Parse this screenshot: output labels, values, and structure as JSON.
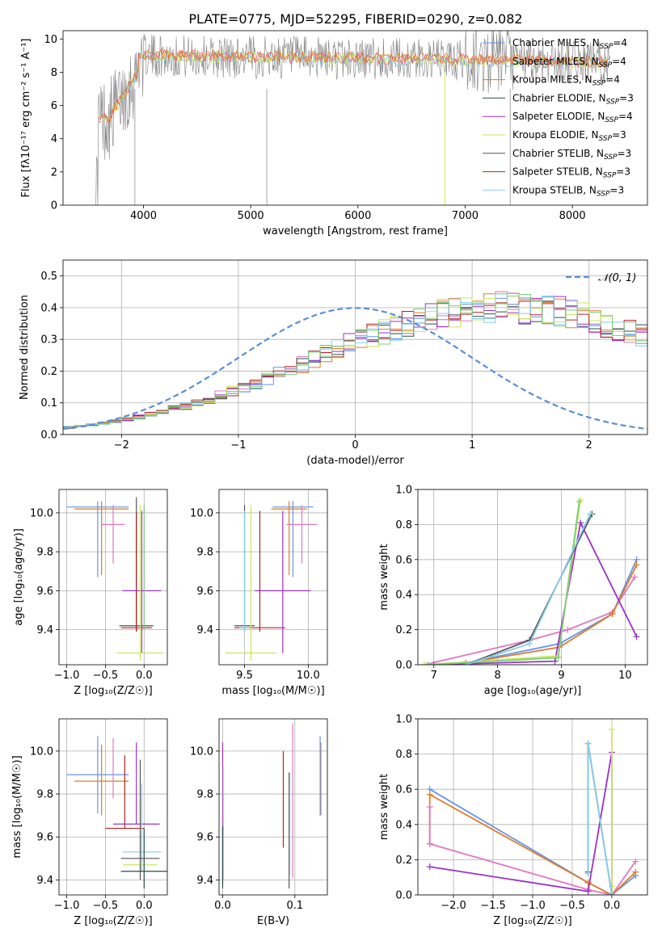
{
  "figure_title": "PLATE=0775, MJD=52295, FIBERID=0290, z=0.082",
  "colors": {
    "Chabrier MILES": "#6495ed",
    "Salpeter MILES": "#e8627a",
    "Kroupa MILES": "#e07b28",
    "Chabrier ELODIE": "#2f4f4f",
    "Salpeter ELODIE": "#9932cc",
    "Kroupa ELODIE": "#c9e85a",
    "Chabrier STELIB": "#555555",
    "Salpeter STELIB": "#b22222",
    "Kroupa STELIB": "#87ceeb",
    "pink": "#e377c2",
    "green": "#7ccd7c",
    "spectrum_gray": "#808080",
    "normal_curve": "#5b8fd6"
  },
  "chart_data": [
    {
      "id": "spectrum",
      "type": "line",
      "title": "PLATE=0775, MJD=52295, FIBERID=0290, z=0.082",
      "xlabel": "wavelength [Angstrom, rest frame]",
      "ylabel": "Flux [fλ10⁻¹⁷ erg cm⁻² s⁻¹ A⁻¹]",
      "xlim": [
        3250,
        8700
      ],
      "ylim": [
        0,
        10.5
      ],
      "xticks": [
        4000,
        5000,
        6000,
        7000,
        8000
      ],
      "yticks": [
        0,
        2,
        4,
        6,
        8,
        10
      ],
      "legend": {
        "position": "top-right",
        "entries": [
          "Chabrier MILES, N_SSP=4",
          "Salpeter MILES, N_SSP=4",
          "Kroupa MILES, N_SSP=4",
          "Chabrier ELODIE, N_SSP=3",
          "Salpeter ELODIE, N_SSP=4",
          "Kroupa ELODIE, N_SSP=3",
          "Chabrier STELIB, N_SSP=3",
          "Salpeter STELIB, N_SSP=3",
          "Kroupa STELIB, N_SSP=3"
        ]
      },
      "data_wavelength_range": [
        3550,
        8350
      ]
    },
    {
      "id": "residuals",
      "type": "histogram",
      "xlabel": "(data-model)/error",
      "ylabel": "Normed distribution",
      "xlim": [
        -2.5,
        2.5
      ],
      "ylim": [
        0,
        0.55
      ],
      "xticks": [
        -2,
        -1,
        0,
        1,
        2
      ],
      "yticks": [
        0.0,
        0.1,
        0.2,
        0.3,
        0.4,
        0.5
      ],
      "grid": true,
      "bin_width": 0.1,
      "bin_start": -2.5,
      "reference_values": [
        0.022,
        0.026,
        0.031,
        0.036,
        0.042,
        0.049,
        0.056,
        0.063,
        0.072,
        0.081,
        0.09,
        0.101,
        0.112,
        0.124,
        0.137,
        0.15,
        0.163,
        0.178,
        0.192,
        0.207,
        0.222,
        0.237,
        0.253,
        0.268,
        0.283,
        0.297,
        0.312,
        0.325,
        0.338,
        0.35,
        0.361,
        0.371,
        0.38,
        0.387,
        0.393,
        0.397,
        0.4,
        0.401,
        0.4,
        0.398,
        0.397,
        0.393,
        0.387,
        0.38,
        0.371,
        0.361,
        0.35,
        0.338,
        0.325,
        0.312,
        0.297
      ],
      "normal_curve_legend": "𝒩(0, 1)",
      "normal_curve_legend_position": "top-right"
    },
    {
      "id": "age_vs_Z",
      "type": "errorbar",
      "xlabel": "Z [log₁₀(Z/Z☉)]",
      "ylabel": "age  [log₁₀(age/yr)]",
      "xlim": [
        -1.1,
        0.3
      ],
      "ylim": [
        9.22,
        10.12
      ],
      "xticks": [
        -1.0,
        -0.5,
        0.0
      ],
      "yticks": [
        9.4,
        9.6,
        9.8,
        10.0
      ],
      "grid": true,
      "points": [
        {
          "color": "Chabrier MILES",
          "x": -0.6,
          "y": 10.03,
          "xerr": 0.4,
          "yerr": [
            0.36,
            0.03
          ]
        },
        {
          "color": "Kroupa MILES",
          "x": -0.55,
          "y": 10.02,
          "xerr": 0.35,
          "yerr": [
            0.34,
            0.04
          ]
        },
        {
          "color": "pink",
          "x": -0.4,
          "y": 9.94,
          "xerr": 0.15,
          "yerr": [
            0.2,
            0.1
          ]
        },
        {
          "color": "Chabrier STELIB",
          "x": -0.1,
          "y": 9.42,
          "xerr": 0.22,
          "yerr": [
            0.03,
            0.66
          ]
        },
        {
          "color": "Salpeter STELIB",
          "x": -0.1,
          "y": 9.41,
          "xerr": 0.2,
          "yerr": [
            0.02,
            0.59
          ]
        },
        {
          "color": "Salpeter ELODIE",
          "x": -0.03,
          "y": 9.6,
          "xerr": 0.25,
          "yerr": [
            0.32,
            0.41
          ]
        },
        {
          "color": "Kroupa ELODIE",
          "x": -0.05,
          "y": 9.28,
          "xerr": 0.3,
          "yerr": [
            0.04,
            0.76
          ]
        },
        {
          "color": "green",
          "x": 0.0,
          "y": 9.4,
          "xerr": 0.0,
          "yerr": [
            0.0,
            0.64
          ]
        }
      ]
    },
    {
      "id": "age_vs_mass",
      "type": "errorbar",
      "xlabel": "mass [log₁₀(M/M☉)]",
      "ylabel": "",
      "xlim": [
        9.3,
        10.15
      ],
      "ylim": [
        9.22,
        10.12
      ],
      "xticks": [
        9.5,
        10.0
      ],
      "yticks": [
        9.4,
        9.6,
        9.8,
        10.0
      ],
      "grid": true,
      "points": [
        {
          "color": "Chabrier MILES",
          "x": 9.88,
          "y": 10.03,
          "xerr": 0.16,
          "yerr": [
            0.36,
            0.03
          ]
        },
        {
          "color": "Kroupa MILES",
          "x": 9.85,
          "y": 10.02,
          "xerr": 0.14,
          "yerr": [
            0.34,
            0.04
          ]
        },
        {
          "color": "pink",
          "x": 9.95,
          "y": 9.94,
          "xerr": 0.12,
          "yerr": [
            0.2,
            0.1
          ]
        },
        {
          "color": "Chabrier STELIB",
          "x": 9.5,
          "y": 9.42,
          "xerr": 0.08,
          "yerr": [
            0.03,
            0.62
          ]
        },
        {
          "color": "Salpeter STELIB",
          "x": 9.62,
          "y": 9.41,
          "xerr": 0.2,
          "yerr": [
            0.02,
            0.6
          ]
        },
        {
          "color": "Salpeter ELODIE",
          "x": 9.8,
          "y": 9.6,
          "xerr": 0.22,
          "yerr": [
            0.32,
            0.41
          ]
        },
        {
          "color": "Kroupa ELODIE",
          "x": 9.55,
          "y": 9.28,
          "xerr": 0.2,
          "yerr": [
            0.04,
            0.76
          ]
        },
        {
          "color": "Kroupa STELIB",
          "x": 9.5,
          "y": 9.41,
          "xerr": 0.04,
          "yerr": [
            0.02,
            0.6
          ]
        }
      ]
    },
    {
      "id": "massweight_vs_age",
      "type": "line",
      "xlabel": "age  [log₁₀(age/yr)]",
      "ylabel": "mass weight",
      "xlim": [
        6.75,
        10.35
      ],
      "ylim": [
        0,
        1.0
      ],
      "xticks": [
        7,
        8,
        9,
        10
      ],
      "yticks": [
        0.0,
        0.2,
        0.4,
        0.6,
        0.8,
        1.0
      ],
      "grid": true,
      "series": [
        {
          "color": "Chabrier MILES",
          "x": [
            7.0,
            7.5,
            8.97,
            9.8,
            10.18
          ],
          "y": [
            0.0,
            0.01,
            0.12,
            0.29,
            0.6
          ]
        },
        {
          "color": "pink",
          "x": [
            6.85,
            8.5,
            9.1,
            9.8,
            10.15
          ],
          "y": [
            0.0,
            0.14,
            0.2,
            0.3,
            0.5
          ]
        },
        {
          "color": "Kroupa MILES",
          "x": [
            7.0,
            7.5,
            8.97,
            9.8,
            10.18
          ],
          "y": [
            0.0,
            0.01,
            0.1,
            0.29,
            0.57
          ]
        },
        {
          "color": "Salpeter ELODIE",
          "x": [
            7.0,
            8.9,
            9.3,
            10.18
          ],
          "y": [
            0.0,
            0.02,
            0.81,
            0.16
          ]
        },
        {
          "color": "Kroupa ELODIE",
          "x": [
            6.85,
            8.95,
            9.3
          ],
          "y": [
            0.0,
            0.05,
            0.94
          ]
        },
        {
          "color": "green",
          "x": [
            6.9,
            8.95,
            9.28
          ],
          "y": [
            0.0,
            0.04,
            0.93
          ]
        },
        {
          "color": "Chabrier STELIB",
          "x": [
            7.5,
            8.5,
            9.48
          ],
          "y": [
            0.0,
            0.14,
            0.86
          ]
        },
        {
          "color": "Kroupa STELIB",
          "x": [
            7.5,
            8.5,
            9.45
          ],
          "y": [
            0.0,
            0.12,
            0.86
          ]
        }
      ]
    },
    {
      "id": "mass_vs_Z",
      "type": "errorbar",
      "xlabel": "Z [log₁₀(Z/Z☉)]",
      "ylabel": "mass [log₁₀(M/M☉)]",
      "xlim": [
        -1.1,
        0.3
      ],
      "ylim": [
        9.33,
        10.15
      ],
      "xticks": [
        -1.0,
        -0.5,
        0.0
      ],
      "yticks": [
        9.4,
        9.6,
        9.8,
        10.0
      ],
      "grid": true,
      "points": [
        {
          "color": "Chabrier MILES",
          "x": -0.6,
          "y": 9.89,
          "xerr": 0.4,
          "yerr": [
            0.18,
            0.18
          ]
        },
        {
          "color": "Kroupa MILES",
          "x": -0.55,
          "y": 9.86,
          "xerr": 0.35,
          "yerr": [
            0.16,
            0.17
          ]
        },
        {
          "color": "pink",
          "x": -0.4,
          "y": 9.94,
          "xerr": 0.0,
          "yerr": [
            0.16,
            0.12
          ]
        },
        {
          "color": "Salpeter STELIB",
          "x": -0.25,
          "y": 9.64,
          "xerr": 0.25,
          "yerr": [
            0.0,
            0.34
          ]
        },
        {
          "color": "Salpeter ELODIE",
          "x": -0.1,
          "y": 9.66,
          "xerr": 0.3,
          "yerr": [
            0.0,
            0.38
          ]
        },
        {
          "color": "Kroupa STELIB",
          "x": -0.03,
          "y": 9.53,
          "xerr": 0.25,
          "yerr": [
            0.09,
            0.32
          ]
        },
        {
          "color": "Kroupa ELODIE",
          "x": -0.05,
          "y": 9.47,
          "xerr": 0.22,
          "yerr": [
            0.07,
            0.31
          ]
        },
        {
          "color": "Chabrier STELIB",
          "x": -0.05,
          "y": 9.5,
          "xerr": 0.25,
          "yerr": [
            0.1,
            0.46
          ]
        },
        {
          "color": "Chabrier ELODIE",
          "x": 0.0,
          "y": 9.44,
          "xerr": 0.3,
          "yerr": [
            0.08,
            0.2
          ]
        }
      ]
    },
    {
      "id": "mass_vs_ebv",
      "type": "errorbar",
      "xlabel": "E(B-V)",
      "ylabel": "",
      "xlim": [
        -0.005,
        0.145
      ],
      "ylim": [
        9.33,
        10.15
      ],
      "xticks": [
        0.0,
        0.1
      ],
      "yticks": [
        9.4,
        9.6,
        9.8,
        10.0
      ],
      "grid": true,
      "points": [
        {
          "color": "Salpeter ELODIE",
          "x": 0.0,
          "y": 9.73,
          "yerr": [
            0.35,
            0.31
          ]
        },
        {
          "color": "Kroupa ELODIE",
          "x": 0.001,
          "y": 9.6,
          "yerr": [
            0.2,
            0.33
          ]
        },
        {
          "color": "Chabrier ELODIE",
          "x": 0.0,
          "y": 9.45,
          "yerr": [
            0.09,
            0.2
          ]
        },
        {
          "color": "Salpeter STELIB",
          "x": 0.084,
          "y": 9.78,
          "yerr": [
            0.23,
            0.22
          ]
        },
        {
          "color": "Chabrier STELIB",
          "x": 0.092,
          "y": 9.65,
          "yerr": [
            0.29,
            0.25
          ]
        },
        {
          "color": "Kroupa STELIB",
          "x": 0.093,
          "y": 9.66,
          "yerr": [
            0.24,
            0.24
          ]
        },
        {
          "color": "pink",
          "x": 0.097,
          "y": 9.75,
          "yerr": [
            0.34,
            0.38
          ]
        },
        {
          "color": "Kroupa MILES",
          "x": 0.136,
          "y": 9.87,
          "yerr": [
            0.17,
            0.17
          ]
        },
        {
          "color": "Chabrier MILES",
          "x": 0.135,
          "y": 9.9,
          "yerr": [
            0.2,
            0.17
          ]
        }
      ]
    },
    {
      "id": "massweight_vs_Z",
      "type": "line",
      "xlabel": "Z [log₁₀(Z/Z☉)]",
      "ylabel": "mass weight",
      "xlim": [
        -2.45,
        0.45
      ],
      "ylim": [
        0,
        1.0
      ],
      "xticks": [
        -2.0,
        -1.5,
        -1.0,
        -0.5,
        0.0
      ],
      "yticks": [
        0.0,
        0.2,
        0.4,
        0.6,
        0.8,
        1.0
      ],
      "grid": true,
      "series": [
        {
          "color": "Chabrier MILES",
          "x": [
            0.3,
            0.0,
            -0.3,
            -2.3
          ],
          "y": [
            0.11,
            0.0,
            0.07,
            0.6
          ]
        },
        {
          "color": "Kroupa MILES",
          "x": [
            0.3,
            0.0,
            -0.3,
            -2.3,
            -2.3
          ],
          "y": [
            0.13,
            0.0,
            0.07,
            0.57,
            0.29
          ]
        },
        {
          "color": "pink",
          "x": [
            0.3,
            0.0,
            -0.3,
            -2.3,
            -2.3
          ],
          "y": [
            0.19,
            0.0,
            0.03,
            0.29,
            0.5
          ]
        },
        {
          "color": "Salpeter ELODIE",
          "x": [
            -2.3,
            -0.3,
            0.0,
            0.0
          ],
          "y": [
            0.16,
            0.02,
            0.81,
            0.0
          ]
        },
        {
          "color": "Kroupa ELODIE",
          "x": [
            0.0,
            0.0,
            0.0
          ],
          "y": [
            0.0,
            0.94,
            0.05
          ]
        },
        {
          "color": "Chabrier STELIB",
          "x": [
            -0.3,
            -0.3,
            0.0
          ],
          "y": [
            0.13,
            0.86,
            0.0
          ]
        },
        {
          "color": "Kroupa STELIB",
          "x": [
            -0.3,
            -0.3,
            0.0
          ],
          "y": [
            0.12,
            0.86,
            0.0
          ]
        }
      ]
    }
  ]
}
